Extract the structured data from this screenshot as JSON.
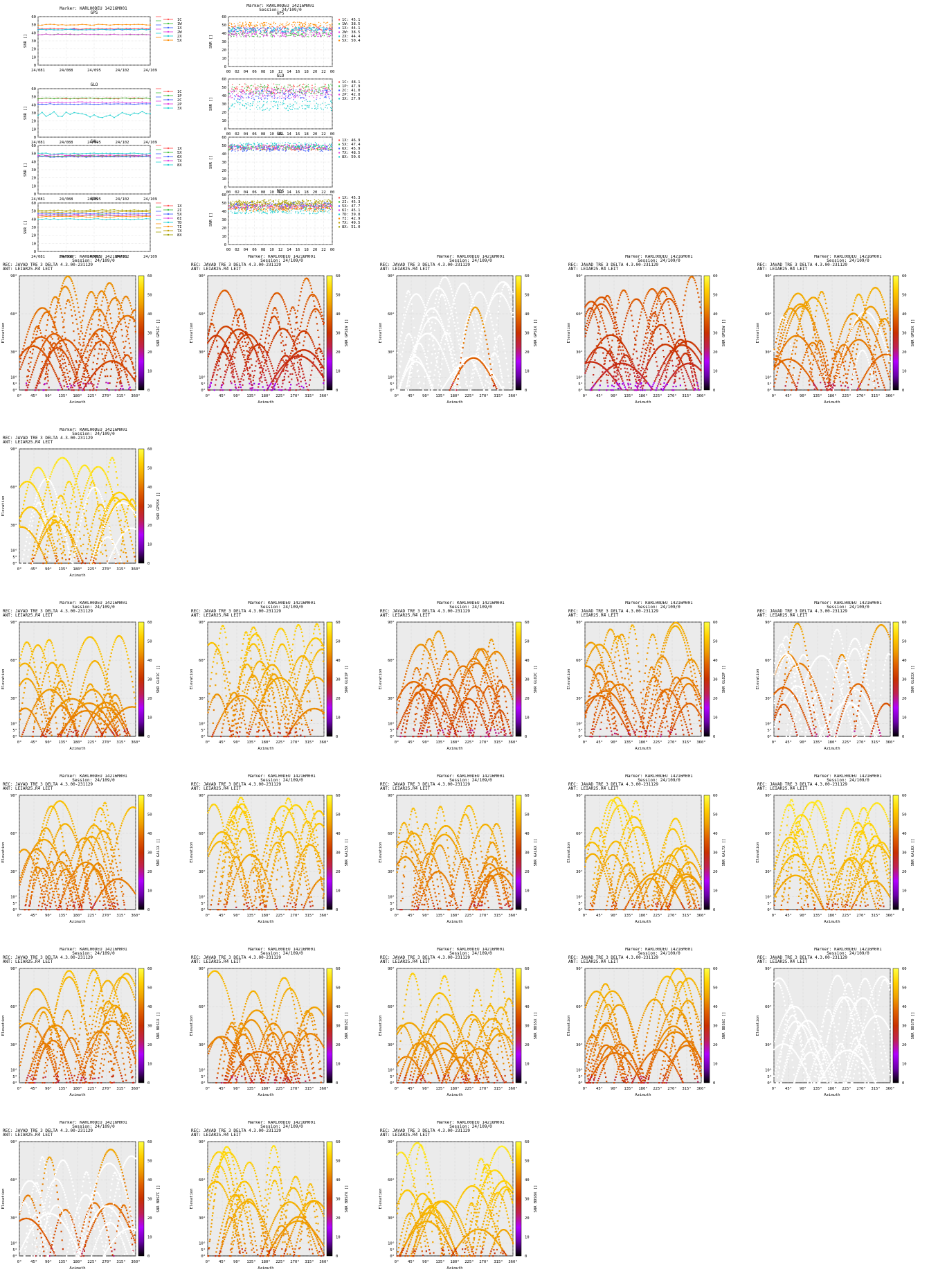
{
  "page": {
    "marker": "Marker: KARL00DEU 14216M001",
    "session": "Session: 24/109/0",
    "receiver": "REC: JAVAD TRE_3 DELTA     4.3.00-231129",
    "antenna": "ANT: LEIAR25.R4      LEIT"
  },
  "common_axes": {
    "snr_ylabel": "SNR []",
    "snr_yticks": [
      "0",
      "10",
      "20",
      "30",
      "40",
      "50",
      "60"
    ],
    "day_xticks": [
      "24/081",
      "24/088",
      "24/095",
      "24/102",
      "24/109"
    ],
    "hour_xticks": [
      "00",
      "02",
      "04",
      "06",
      "08",
      "10",
      "12",
      "14",
      "16",
      "18",
      "20",
      "22",
      "00"
    ],
    "az_label": "Azimuth",
    "el_label": "Elevation",
    "az_ticks": [
      "0°",
      "45°",
      "90°",
      "135°",
      "180°",
      "225°",
      "270°",
      "315°",
      "360°"
    ],
    "el_ticks": [
      "0°",
      "5°",
      "10°",
      "30°",
      "60°",
      "90°"
    ],
    "cbar_ticks": [
      "0",
      "10",
      "20",
      "30",
      "40",
      "50",
      "60"
    ]
  },
  "colors": {
    "series": [
      "#ff5050",
      "#40c040",
      "#4060ff",
      "#e040e0",
      "#20d0d0",
      "#ff8c00",
      "#c0a000",
      "#a0a000",
      "#4080ff"
    ],
    "skyplot_bg": "#ebebeb",
    "track_background": "#ffffff",
    "colormap": [
      "#000000",
      "#6a00a8",
      "#b000ff",
      "#c02050",
      "#c83000",
      "#e06000",
      "#f0a000",
      "#ffd000",
      "#ffff40"
    ]
  },
  "chart_data": {
    "timeseries_long": [
      {
        "type": "line",
        "title": "GPS",
        "ylim": [
          0,
          60
        ],
        "xticks": [
          "24/081",
          "24/088",
          "24/095",
          "24/102",
          "24/109"
        ],
        "series": [
          {
            "name": "1C",
            "level": 45
          },
          {
            "name": "1W",
            "level": 38
          },
          {
            "name": "1X",
            "level": 44
          },
          {
            "name": "2W",
            "level": 38
          },
          {
            "name": "2X",
            "level": 44
          },
          {
            "name": "5X",
            "level": 50
          }
        ]
      },
      {
        "type": "line",
        "title": "GLO",
        "ylim": [
          0,
          60
        ],
        "xticks": [
          "24/081",
          "24/088",
          "24/095",
          "24/102",
          "24/109"
        ],
        "series": [
          {
            "name": "1C",
            "level": 48
          },
          {
            "name": "1P",
            "level": 48
          },
          {
            "name": "2C",
            "level": 41
          },
          {
            "name": "2P",
            "level": 43
          },
          {
            "name": "3X",
            "level": 28
          }
        ]
      },
      {
        "type": "line",
        "title": "GAL",
        "ylim": [
          0,
          60
        ],
        "xticks": [
          "24/081",
          "24/088",
          "24/095",
          "24/102",
          "24/109"
        ],
        "series": [
          {
            "name": "1X",
            "level": 47
          },
          {
            "name": "5X",
            "level": 47
          },
          {
            "name": "6X",
            "level": 46
          },
          {
            "name": "7X",
            "level": 48
          },
          {
            "name": "8X",
            "level": 50
          }
        ]
      },
      {
        "type": "line",
        "title": "BDS",
        "ylim": [
          0,
          60
        ],
        "xticks": [
          "24/081",
          "24/088",
          "24/095",
          "24/102",
          "24/109"
        ],
        "series": [
          {
            "name": "1X",
            "level": 45
          },
          {
            "name": "2I",
            "level": 45
          },
          {
            "name": "5X",
            "level": 47
          },
          {
            "name": "6I",
            "level": 45
          },
          {
            "name": "7D",
            "level": 40
          },
          {
            "name": "7I",
            "level": 43
          },
          {
            "name": "7X",
            "level": 49
          },
          {
            "name": "8X",
            "level": 51
          }
        ]
      }
    ],
    "timeseries_day": [
      {
        "type": "scatter",
        "title": "GPS",
        "ylim": [
          0,
          60
        ],
        "series": [
          {
            "name": "1C",
            "mean": "45.1"
          },
          {
            "name": "1W",
            "mean": "38.5"
          },
          {
            "name": "1X",
            "mean": "44.1"
          },
          {
            "name": "2W",
            "mean": "38.5"
          },
          {
            "name": "2X",
            "mean": "44.4"
          },
          {
            "name": "5X",
            "mean": "50.4"
          }
        ]
      },
      {
        "type": "scatter",
        "title": "GLO",
        "ylim": [
          0,
          60
        ],
        "series": [
          {
            "name": "1C",
            "mean": "48.1"
          },
          {
            "name": "1P",
            "mean": "47.9"
          },
          {
            "name": "2C",
            "mean": "41.0"
          },
          {
            "name": "2P",
            "mean": "42.8"
          },
          {
            "name": "3X",
            "mean": "27.9"
          }
        ]
      },
      {
        "type": "scatter",
        "title": "GAL",
        "ylim": [
          0,
          60
        ],
        "series": [
          {
            "name": "1X",
            "mean": "46.9"
          },
          {
            "name": "5X",
            "mean": "47.4"
          },
          {
            "name": "6X",
            "mean": "45.9"
          },
          {
            "name": "7X",
            "mean": "48.5"
          },
          {
            "name": "8X",
            "mean": "50.6"
          }
        ]
      },
      {
        "type": "scatter",
        "title": "BDS",
        "ylim": [
          0,
          60
        ],
        "series": [
          {
            "name": "1X",
            "mean": "45.3"
          },
          {
            "name": "2I",
            "mean": "45.3"
          },
          {
            "name": "5X",
            "mean": "47.7"
          },
          {
            "name": "6I",
            "mean": "45.1"
          },
          {
            "name": "7D",
            "mean": "39.8"
          },
          {
            "name": "7I",
            "mean": "42.9"
          },
          {
            "name": "7X",
            "mean": "49.5"
          },
          {
            "name": "8X",
            "mean": "51.0"
          }
        ]
      }
    ],
    "skyplots": [
      {
        "type": "heatmap",
        "cbar_label": "SNR GPS1C []",
        "level": 38,
        "coverage": 1.0
      },
      {
        "type": "heatmap",
        "cbar_label": "SNR GPS1W []",
        "level": 33,
        "coverage": 1.0
      },
      {
        "type": "heatmap",
        "cbar_label": "SNR GPS1X []",
        "level": 42,
        "coverage": 0.3
      },
      {
        "type": "heatmap",
        "cbar_label": "SNR GPS2W []",
        "level": 33,
        "coverage": 1.0
      },
      {
        "type": "heatmap",
        "cbar_label": "SNR GPS2X []",
        "level": 43,
        "coverage": 0.9
      },
      {
        "type": "heatmap",
        "cbar_label": "SNR GPS5X []",
        "level": 52,
        "coverage": 0.85
      },
      {
        "type": "heatmap",
        "cbar_label": "SNR GLO1C []",
        "level": 47,
        "coverage": 1.0
      },
      {
        "type": "heatmap",
        "cbar_label": "SNR GLO1P []",
        "level": 47,
        "coverage": 1.0
      },
      {
        "type": "heatmap",
        "cbar_label": "SNR GLO2C []",
        "level": 40,
        "coverage": 1.0
      },
      {
        "type": "heatmap",
        "cbar_label": "SNR GLO2P []",
        "level": 42,
        "coverage": 1.0
      },
      {
        "type": "heatmap",
        "cbar_label": "SNR GLO3X []",
        "level": 40,
        "coverage": 0.45
      },
      {
        "type": "heatmap",
        "cbar_label": "SNR GAL1X []",
        "level": 45,
        "coverage": 1.0
      },
      {
        "type": "heatmap",
        "cbar_label": "SNR GAL5X []",
        "level": 48,
        "coverage": 1.0
      },
      {
        "type": "heatmap",
        "cbar_label": "SNR GAL6X []",
        "level": 45,
        "coverage": 1.0
      },
      {
        "type": "heatmap",
        "cbar_label": "SNR GAL7X []",
        "level": 49,
        "coverage": 1.0
      },
      {
        "type": "heatmap",
        "cbar_label": "SNR GAL8X []",
        "level": 51,
        "coverage": 1.0
      },
      {
        "type": "heatmap",
        "cbar_label": "SNR BDS1X []",
        "level": 44,
        "coverage": 1.0
      },
      {
        "type": "heatmap",
        "cbar_label": "SNR BDS2I []",
        "level": 44,
        "coverage": 1.0
      },
      {
        "type": "heatmap",
        "cbar_label": "SNR BDS5X []",
        "level": 47,
        "coverage": 1.0
      },
      {
        "type": "heatmap",
        "cbar_label": "SNR BDS6I []",
        "level": 44,
        "coverage": 1.0
      },
      {
        "type": "heatmap",
        "cbar_label": "SNR BDS7D []",
        "level": 35,
        "coverage": 0.0
      },
      {
        "type": "heatmap",
        "cbar_label": "SNR BDS7I []",
        "level": 41,
        "coverage": 0.25
      },
      {
        "type": "heatmap",
        "cbar_label": "SNR BDS7X []",
        "level": 49,
        "coverage": 1.0
      },
      {
        "type": "heatmap",
        "cbar_label": "SNR BDS8X []",
        "level": 51,
        "coverage": 1.0
      }
    ]
  }
}
